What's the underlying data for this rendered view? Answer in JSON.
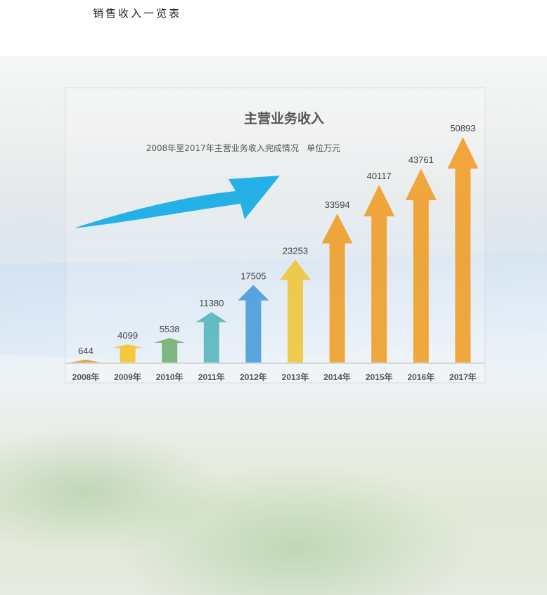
{
  "page": {
    "title": "销售收入一览表"
  },
  "chart_data": {
    "type": "bar",
    "title": "主营业务收入",
    "subtitle": "2008年至2017年主营业务收入完成情况   单位万元",
    "categories": [
      "2008年",
      "2009年",
      "2010年",
      "2011年",
      "2012年",
      "2013年",
      "2014年",
      "2015年",
      "2016年",
      "2017年"
    ],
    "values": [
      644,
      4099,
      5538,
      11380,
      17505,
      23253,
      33594,
      40117,
      43761,
      50893
    ],
    "colors": [
      "#e8901a",
      "#f3c21f",
      "#6aab6a",
      "#4db3b8",
      "#3f97d8",
      "#f0c330",
      "#f0991c",
      "#f0991c",
      "#f0991c",
      "#f0991c"
    ],
    "ylim": [
      0,
      50893
    ],
    "grid": false,
    "legend": "none",
    "mark_shape": "arrow",
    "decoration": "blue-swoosh-arrow"
  }
}
